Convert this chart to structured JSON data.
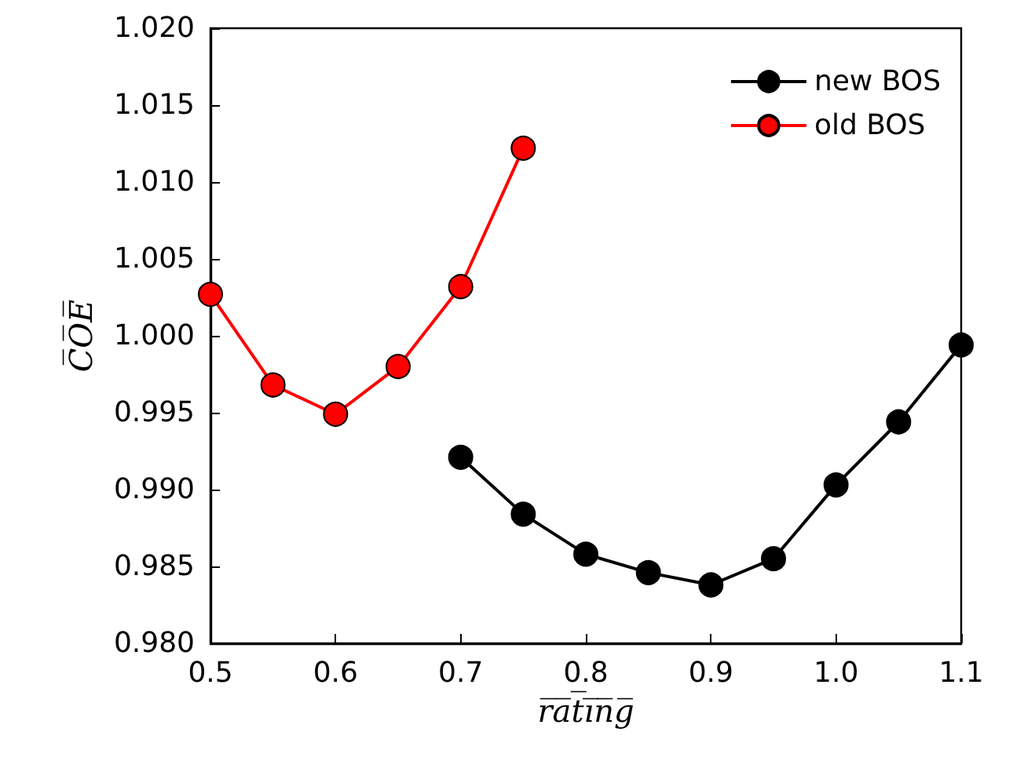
{
  "chart_data": {
    "type": "line",
    "xlabel": "r̅a̅t̅i̅n̅g̅",
    "ylabel": "C̅O̅E̅",
    "xlim": [
      0.5,
      1.1
    ],
    "xticks": [
      {
        "value": 0.5,
        "label": "0.5"
      },
      {
        "value": 0.6,
        "label": "0.6"
      },
      {
        "value": 0.7,
        "label": "0.7"
      },
      {
        "value": 0.8,
        "label": "0.8"
      },
      {
        "value": 0.9,
        "label": "0.9"
      },
      {
        "value": 1.0,
        "label": "1.0"
      },
      {
        "value": 1.1,
        "label": "1.1"
      }
    ],
    "ylim": [
      0.98,
      1.02
    ],
    "yticks": [
      {
        "value": 0.98,
        "label": "0.980"
      },
      {
        "value": 0.985,
        "label": "0.985"
      },
      {
        "value": 0.99,
        "label": "0.990"
      },
      {
        "value": 0.995,
        "label": "0.995"
      },
      {
        "value": 1.0,
        "label": "1.000"
      },
      {
        "value": 1.005,
        "label": "1.005"
      },
      {
        "value": 1.01,
        "label": "1.010"
      },
      {
        "value": 1.015,
        "label": "1.015"
      },
      {
        "value": 1.02,
        "label": "1.020"
      }
    ],
    "grid": false,
    "legend": "top right",
    "marker": "circle",
    "line_style": "solid",
    "series": [
      {
        "name": "new BOS",
        "color": "#000000",
        "x": [
          0.7,
          0.75,
          0.8,
          0.85,
          0.9,
          0.95,
          1.0,
          1.05,
          1.1
        ],
        "values": [
          0.9921,
          0.9884,
          0.9858,
          0.9846,
          0.9838,
          0.9855,
          0.9903,
          0.9944,
          0.9994
        ]
      },
      {
        "name": "old BOS",
        "color": "#ff0000",
        "x": [
          0.5,
          0.55,
          0.6,
          0.65,
          0.7,
          0.75
        ],
        "values": [
          1.0027,
          0.9968,
          0.9949,
          0.998,
          1.0032,
          1.0122
        ]
      }
    ]
  }
}
